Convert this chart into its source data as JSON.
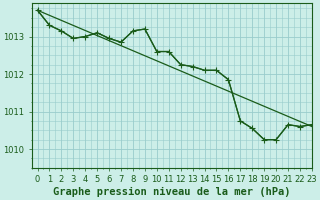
{
  "background_color": "#cceee8",
  "grid_color": "#99cccc",
  "line_color": "#1a5c1a",
  "marker_color": "#1a5c1a",
  "title": "Graphe pression niveau de la mer (hPa)",
  "xlim": [
    -0.5,
    23
  ],
  "ylim": [
    1009.5,
    1013.9
  ],
  "yticks": [
    1010,
    1011,
    1012,
    1013
  ],
  "xticks": [
    0,
    1,
    2,
    3,
    4,
    5,
    6,
    7,
    8,
    9,
    10,
    11,
    12,
    13,
    14,
    15,
    16,
    17,
    18,
    19,
    20,
    21,
    22,
    23
  ],
  "series1_x": [
    0,
    1,
    2,
    3,
    4,
    5,
    6,
    7,
    8,
    9,
    10,
    11,
    12,
    13,
    14,
    15,
    16,
    17,
    18,
    19,
    20,
    21,
    22,
    23
  ],
  "series1_y": [
    1013.7,
    1013.3,
    1013.15,
    1012.95,
    1013.0,
    1013.1,
    1012.95,
    1012.85,
    1013.15,
    1013.2,
    1012.6,
    1012.6,
    1012.25,
    1012.2,
    1012.1,
    1012.1,
    1011.85,
    1010.75,
    1010.55,
    1010.25,
    1010.25,
    1010.65,
    1010.6,
    1010.65
  ],
  "series2_x": [
    0,
    23
  ],
  "series2_y": [
    1013.7,
    1010.6
  ],
  "series3_x": [
    0,
    1,
    2,
    3,
    4,
    5,
    6,
    7,
    8,
    9,
    10,
    11,
    12,
    13,
    14,
    15,
    16,
    17,
    18,
    19,
    20,
    21,
    22,
    23
  ],
  "series3_y": [
    1013.7,
    1013.3,
    1013.15,
    1012.95,
    1013.0,
    1013.1,
    1012.95,
    1012.85,
    1013.15,
    1013.2,
    1012.6,
    1012.6,
    1012.25,
    1012.2,
    1012.1,
    1012.1,
    1011.85,
    1010.75,
    1010.55,
    1010.25,
    1010.25,
    1010.65,
    1010.6,
    1010.65
  ],
  "title_fontsize": 7.5,
  "tick_fontsize": 6.0,
  "marker_size": 2.5,
  "linewidth": 0.9
}
